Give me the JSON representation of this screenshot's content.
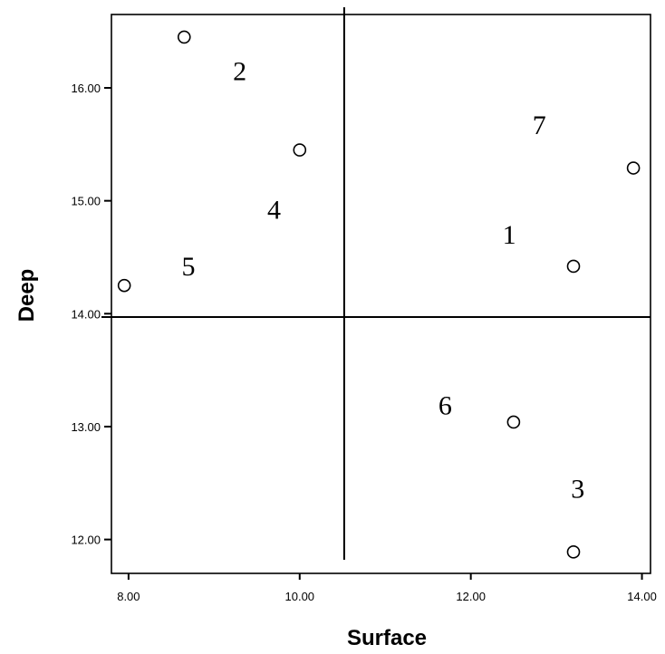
{
  "chart_data": {
    "type": "scatter",
    "xlabel": "Surface",
    "ylabel": "Deep",
    "xlim": [
      7.8,
      14.1
    ],
    "ylim": [
      11.7,
      16.65
    ],
    "x_ticks": [
      "8.00",
      "10.00",
      "12.00",
      "14.00"
    ],
    "y_ticks": [
      "12.00",
      "13.00",
      "14.00",
      "15.00",
      "16.00"
    ],
    "x_tick_values": [
      8,
      10,
      12,
      14
    ],
    "y_tick_values": [
      12,
      13,
      14,
      15,
      16
    ],
    "reference_lines": {
      "x": 10.52,
      "y": 13.97
    },
    "points": [
      {
        "x": 7.95,
        "y": 14.25
      },
      {
        "x": 8.65,
        "y": 16.45
      },
      {
        "x": 10.0,
        "y": 15.45
      },
      {
        "x": 12.5,
        "y": 13.04
      },
      {
        "x": 13.2,
        "y": 14.42
      },
      {
        "x": 13.2,
        "y": 11.89
      },
      {
        "x": 13.9,
        "y": 15.29
      }
    ],
    "annotations": [
      {
        "text": "1",
        "x": 12.45,
        "y": 14.7
      },
      {
        "text": "2",
        "x": 9.3,
        "y": 16.15
      },
      {
        "text": "3",
        "x": 13.25,
        "y": 12.45
      },
      {
        "text": "4",
        "x": 9.7,
        "y": 14.92
      },
      {
        "text": "5",
        "x": 8.7,
        "y": 14.42
      },
      {
        "text": "6",
        "x": 11.7,
        "y": 13.19
      },
      {
        "text": "7",
        "x": 12.8,
        "y": 15.67
      }
    ],
    "grid": false,
    "legend": "none"
  }
}
